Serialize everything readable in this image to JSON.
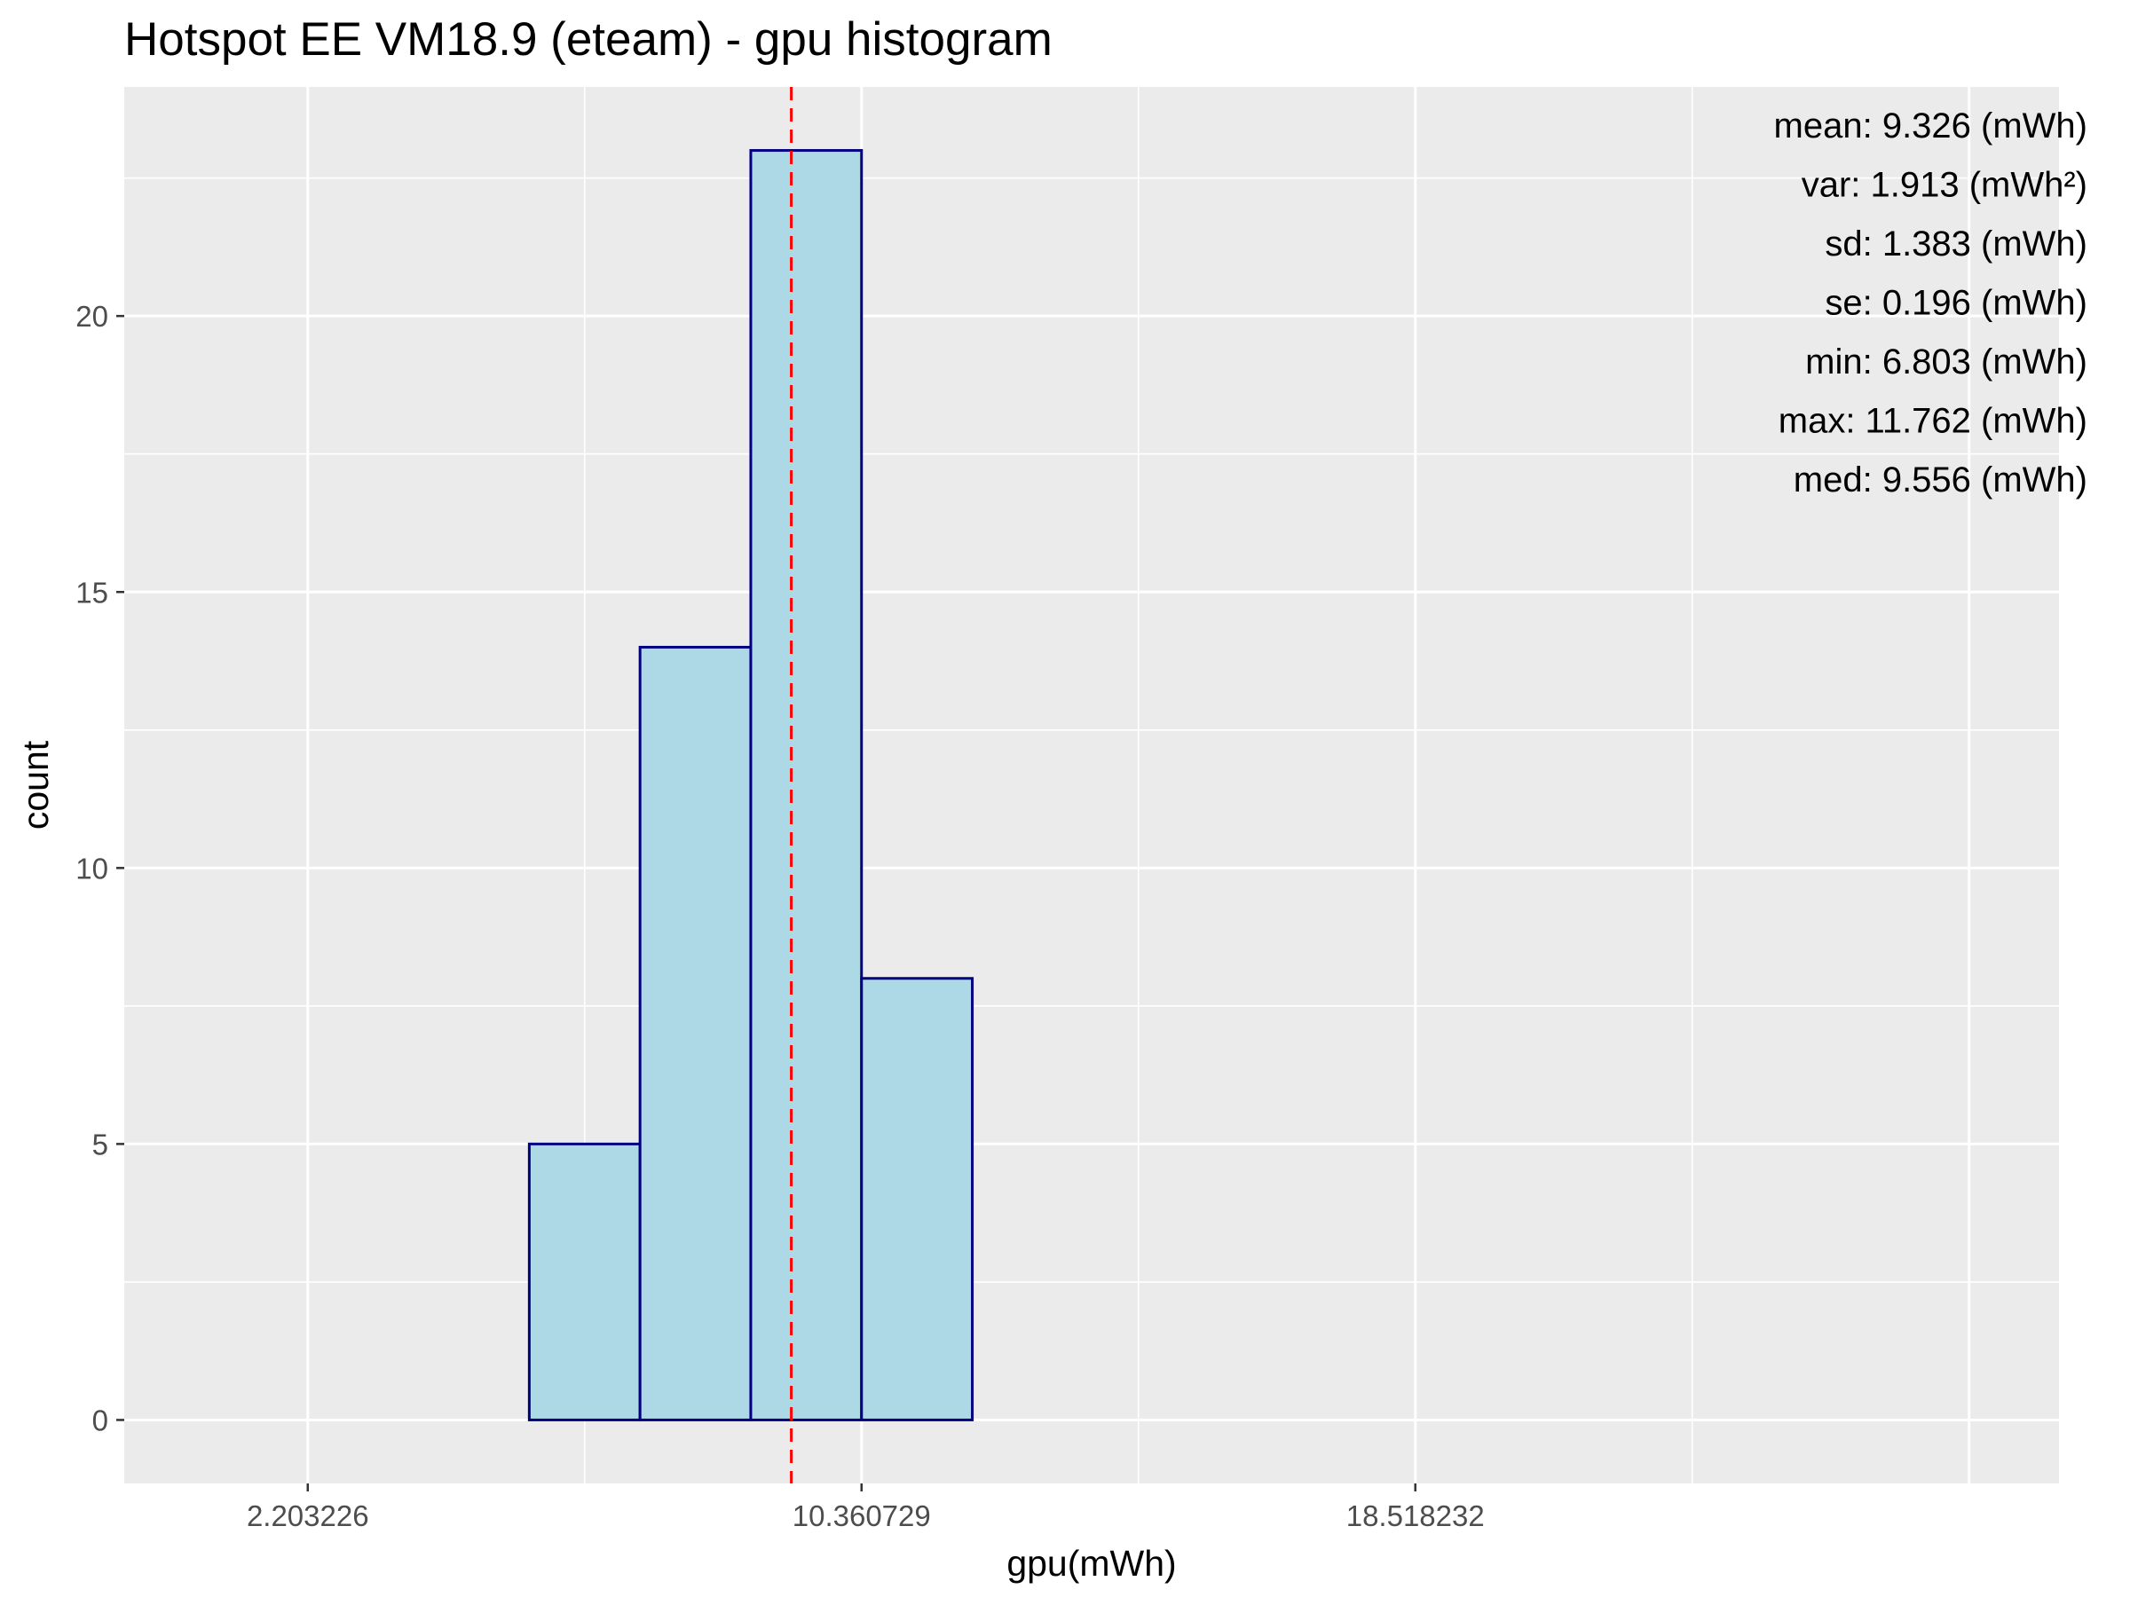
{
  "chart_data": {
    "type": "bar",
    "title": "Hotspot EE VM18.9 (eteam) - gpu histogram",
    "xlabel": "gpu(mWh)",
    "ylabel": "count",
    "bin_width": 1.6315,
    "bins": [
      {
        "start": 0.5717,
        "end": 2.2032,
        "count": 0
      },
      {
        "start": 2.2032,
        "end": 3.8347,
        "count": 0
      },
      {
        "start": 3.8347,
        "end": 5.4662,
        "count": 0
      },
      {
        "start": 5.4662,
        "end": 7.0977,
        "count": 5
      },
      {
        "start": 7.0977,
        "end": 8.7292,
        "count": 14
      },
      {
        "start": 8.7292,
        "end": 10.3607,
        "count": 23
      },
      {
        "start": 10.3607,
        "end": 11.9922,
        "count": 8
      },
      {
        "start": 11.9922,
        "end": 13.6237,
        "count": 0
      },
      {
        "start": 13.6237,
        "end": 15.2552,
        "count": 0
      },
      {
        "start": 15.2552,
        "end": 16.8867,
        "count": 0
      },
      {
        "start": 16.8867,
        "end": 18.5182,
        "count": 0
      },
      {
        "start": 18.5182,
        "end": 20.1497,
        "count": 0
      },
      {
        "start": 20.1497,
        "end": 21.7812,
        "count": 0
      },
      {
        "start": 21.7812,
        "end": 23.4127,
        "count": 0
      },
      {
        "start": 23.4127,
        "end": 25.0442,
        "count": 0
      },
      {
        "start": 25.0442,
        "end": 26.6757,
        "count": 0
      }
    ],
    "mean_line": {
      "value": 9.326,
      "color": "#ff0000",
      "style": "dashed"
    },
    "x_ticks": [
      "2.203226",
      "10.360729",
      "18.518232"
    ],
    "x_tick_values": [
      2.203226,
      10.360729,
      18.518232
    ],
    "y_ticks": [
      "0",
      "5",
      "10",
      "15",
      "20"
    ],
    "y_tick_values": [
      0,
      5,
      10,
      15,
      20
    ],
    "xlim": [
      -0.5,
      28.0
    ],
    "ylim": [
      -1.15,
      24.15
    ],
    "stats": [
      "mean: 9.326 (mWh)",
      "var: 1.913 (mWh²)",
      "sd: 1.383 (mWh)",
      "se: 0.196 (mWh)",
      "min: 6.803 (mWh)",
      "max: 11.762 (mWh)",
      "med: 9.556 (mWh)"
    ],
    "colors": {
      "bar_fill": "#add8e6",
      "bar_outline": "#000080",
      "panel_background": "#ebebeb",
      "grid": "#ffffff"
    }
  }
}
